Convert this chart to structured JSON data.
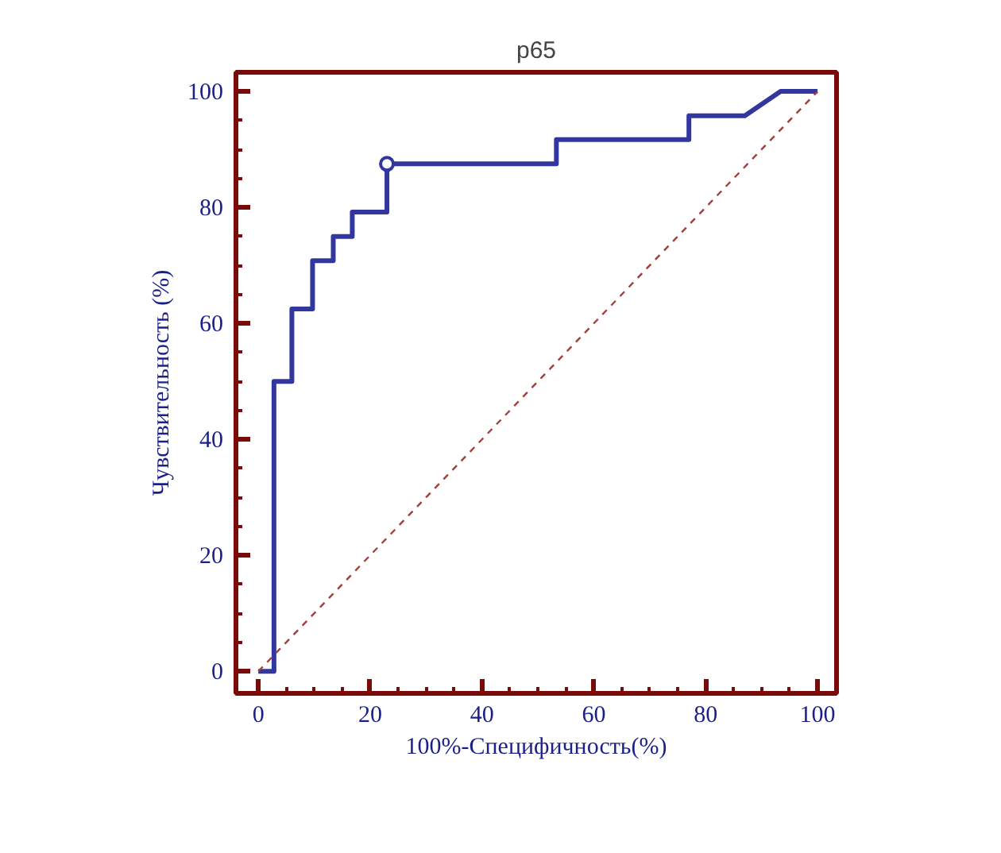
{
  "chart_data": {
    "type": "line",
    "title": "p65",
    "xlabel": "100%-Специфичность(%)",
    "ylabel": "Чувствительность (%)",
    "xlim": [
      -4,
      103.4
    ],
    "ylim": [
      -3.8,
      103.3
    ],
    "xticks": [
      0,
      20,
      40,
      60,
      80,
      100
    ],
    "yticks": [
      0,
      20,
      40,
      60,
      80,
      100
    ],
    "grid": false,
    "series": [
      {
        "color": "#3237a0",
        "x": [
          0,
          2.8,
          2.8,
          6,
          6,
          9.7,
          9.7,
          13.4,
          13.4,
          16.8,
          16.8,
          23,
          23,
          53.3,
          53.3,
          77,
          77,
          87,
          93.4,
          100
        ],
        "values": [
          0,
          0,
          50,
          50,
          62.5,
          62.5,
          70.8,
          70.8,
          75,
          75,
          79.2,
          79.2,
          87.5,
          87.5,
          91.7,
          91.7,
          95.8,
          95.8,
          100,
          100
        ],
        "line_style": "solid"
      },
      {
        "color": "#a0403c",
        "x": [
          0,
          100
        ],
        "values": [
          0,
          100
        ],
        "line_style": "dashed"
      },
      {
        "type": "scatter",
        "color": "#3237a0",
        "x": [
          23
        ],
        "values": [
          87.5
        ],
        "marker": "circle"
      }
    ]
  }
}
